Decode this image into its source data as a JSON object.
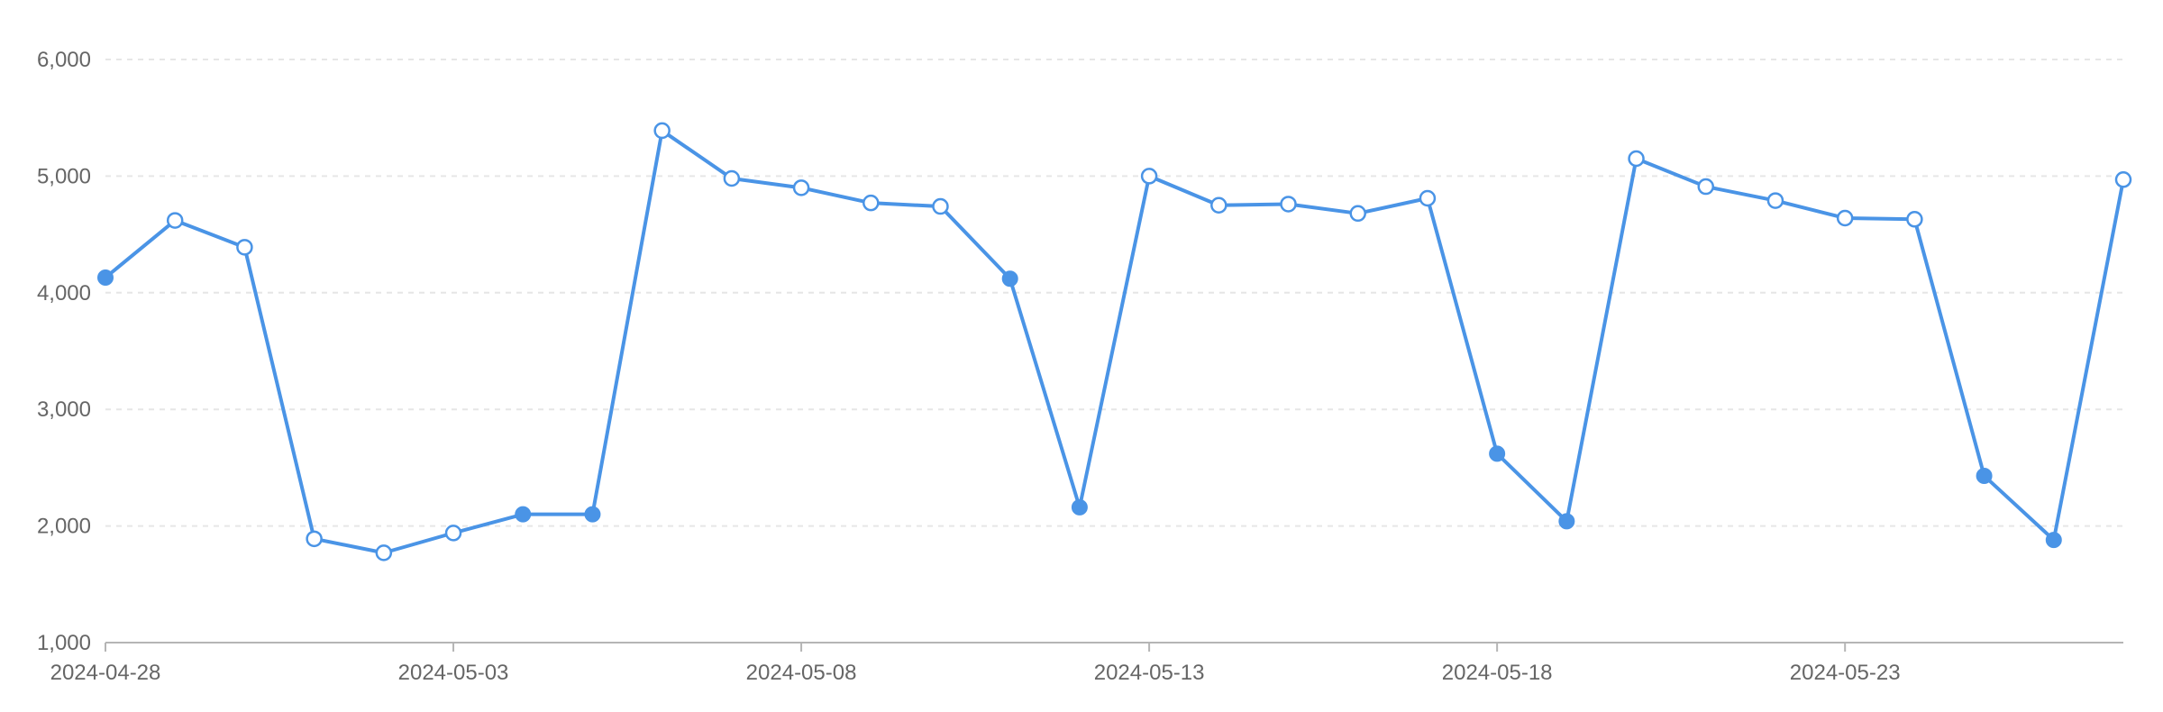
{
  "chart_data": {
    "type": "line",
    "title": "",
    "xlabel": "",
    "ylabel": "",
    "ylim": [
      1000,
      6000
    ],
    "yticks": [
      1000,
      2000,
      3000,
      4000,
      5000,
      6000
    ],
    "yticks_labels": [
      "1,000",
      "2,000",
      "3,000",
      "4,000",
      "5,000",
      "6,000"
    ],
    "x_tick_labels": [
      "2024-04-28",
      "2024-05-03",
      "2024-05-08",
      "2024-05-13",
      "2024-05-18",
      "2024-05-23"
    ],
    "grid": "horizontal dashed",
    "legend": "none",
    "colors": {
      "line": "#4a94e6",
      "marker_fill": "#4a94e6",
      "marker_hollow_fill": "#ffffff"
    },
    "series": [
      {
        "values": [
          {
            "date": "2024-04-28",
            "value": 4130,
            "marker": "filled"
          },
          {
            "date": "2024-04-29",
            "value": 4620,
            "marker": "hollow"
          },
          {
            "date": "2024-04-30",
            "value": 4390,
            "marker": "hollow"
          },
          {
            "date": "2024-05-01",
            "value": 1890,
            "marker": "hollow"
          },
          {
            "date": "2024-05-02",
            "value": 1770,
            "marker": "hollow"
          },
          {
            "date": "2024-05-03",
            "value": 1940,
            "marker": "hollow"
          },
          {
            "date": "2024-05-04",
            "value": 2100,
            "marker": "filled"
          },
          {
            "date": "2024-05-05",
            "value": 2100,
            "marker": "filled"
          },
          {
            "date": "2024-05-06",
            "value": 5390,
            "marker": "hollow"
          },
          {
            "date": "2024-05-07",
            "value": 4980,
            "marker": "hollow"
          },
          {
            "date": "2024-05-08",
            "value": 4900,
            "marker": "hollow"
          },
          {
            "date": "2024-05-09",
            "value": 4770,
            "marker": "hollow"
          },
          {
            "date": "2024-05-10",
            "value": 4740,
            "marker": "hollow"
          },
          {
            "date": "2024-05-11",
            "value": 4120,
            "marker": "filled"
          },
          {
            "date": "2024-05-12",
            "value": 2160,
            "marker": "filled"
          },
          {
            "date": "2024-05-13",
            "value": 5000,
            "marker": "hollow"
          },
          {
            "date": "2024-05-14",
            "value": 4750,
            "marker": "hollow"
          },
          {
            "date": "2024-05-15",
            "value": 4760,
            "marker": "hollow"
          },
          {
            "date": "2024-05-16",
            "value": 4680,
            "marker": "hollow"
          },
          {
            "date": "2024-05-17",
            "value": 4810,
            "marker": "hollow"
          },
          {
            "date": "2024-05-18",
            "value": 2620,
            "marker": "filled"
          },
          {
            "date": "2024-05-19",
            "value": 2040,
            "marker": "filled"
          },
          {
            "date": "2024-05-20",
            "value": 5150,
            "marker": "hollow"
          },
          {
            "date": "2024-05-21",
            "value": 4910,
            "marker": "hollow"
          },
          {
            "date": "2024-05-22",
            "value": 4790,
            "marker": "hollow"
          },
          {
            "date": "2024-05-23",
            "value": 4640,
            "marker": "hollow"
          },
          {
            "date": "2024-05-24",
            "value": 4630,
            "marker": "hollow"
          },
          {
            "date": "2024-05-25",
            "value": 2430,
            "marker": "filled"
          },
          {
            "date": "2024-05-26",
            "value": 1880,
            "marker": "filled"
          },
          {
            "date": "2024-05-27",
            "value": 4970,
            "marker": "hollow"
          }
        ]
      }
    ]
  }
}
